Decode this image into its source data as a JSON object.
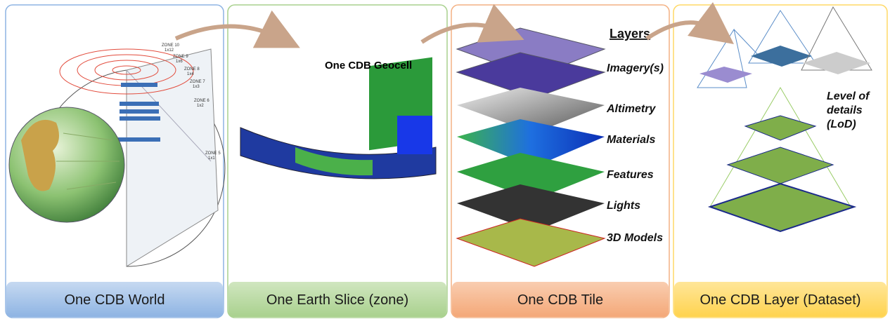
{
  "panels": [
    {
      "caption": "One CDB World"
    },
    {
      "caption": "One Earth Slice (zone)"
    },
    {
      "caption": "One CDB Tile"
    },
    {
      "caption": "One CDB Layer (Dataset)"
    }
  ],
  "world": {
    "zones": [
      {
        "name": "ZONE 10",
        "size": "1x12"
      },
      {
        "name": "ZONE 9",
        "size": "1x6"
      },
      {
        "name": "ZONE 8",
        "size": "1x4"
      },
      {
        "name": "ZONE 7",
        "size": "1x3"
      },
      {
        "name": "ZONE 6",
        "size": "1x2"
      },
      {
        "name": "ZONE 5",
        "size": "1x1"
      }
    ]
  },
  "slice": {
    "label": "One CDB Geocell"
  },
  "tile": {
    "title": "Layers",
    "layers": [
      "Imagery(s)",
      "Altimetry",
      "Materials",
      "Features",
      "Lights",
      "3D Models"
    ]
  },
  "dataset": {
    "label_lines": [
      "Level of",
      "details",
      "(LoD)"
    ]
  }
}
